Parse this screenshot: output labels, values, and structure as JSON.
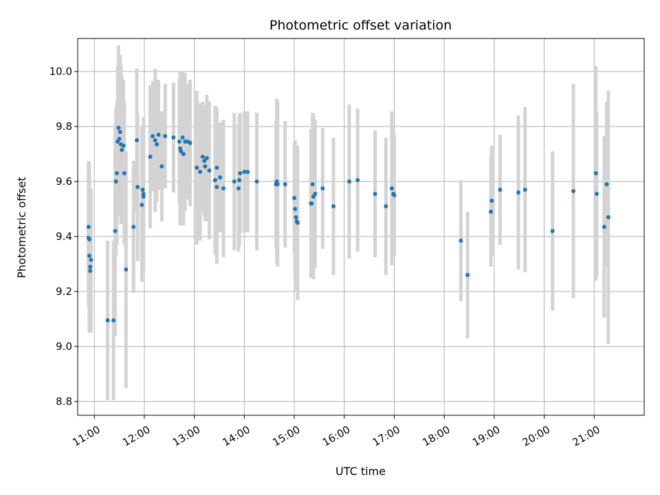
{
  "chart_data": {
    "type": "scatter",
    "title": "Photometric offset variation",
    "xlabel": "UTC time",
    "ylabel": "Photometric offset",
    "xlim": [
      "10:40",
      "22:00"
    ],
    "ylim": [
      8.75,
      10.12
    ],
    "x_ticks": [
      "11:00",
      "12:00",
      "13:00",
      "14:00",
      "15:00",
      "16:00",
      "17:00",
      "18:00",
      "19:00",
      "20:00",
      "21:00"
    ],
    "y_ticks": [
      "8.8",
      "9.0",
      "9.2",
      "9.4",
      "9.6",
      "9.8",
      "10.0"
    ],
    "grid": true,
    "colors": {
      "point": "#1f77b4",
      "errorbar": "#d3d3d3",
      "grid": "#b0b0b0"
    },
    "series": [
      {
        "x": [
          "10:53",
          "10:53",
          "10:54",
          "10:54",
          "10:55",
          "10:55",
          "10:56",
          "11:16",
          "11:23",
          "11:25",
          "11:26",
          "11:27",
          "11:28",
          "11:29",
          "11:30",
          "11:31",
          "11:32",
          "11:33",
          "11:35",
          "11:36",
          "11:38",
          "11:47",
          "11:51",
          "11:52",
          "11:57",
          "11:58",
          "11:59",
          "11:59",
          "12:07",
          "12:10",
          "12:13",
          "12:15",
          "12:17",
          "12:21",
          "12:25",
          "12:35",
          "12:42",
          "12:43",
          "12:44",
          "12:46",
          "12:47",
          "12:49",
          "12:52",
          "12:55",
          "13:03",
          "13:07",
          "13:10",
          "13:12",
          "13:13",
          "13:15",
          "13:18",
          "13:25",
          "13:27",
          "13:27",
          "13:31",
          "13:35",
          "13:48",
          "13:53",
          "13:54",
          "13:55",
          "14:00",
          "14:04",
          "14:15",
          "14:38",
          "14:39",
          "14:40",
          "14:49",
          "15:00",
          "15:01",
          "15:02",
          "15:03",
          "15:04",
          "15:20",
          "15:21",
          "15:22",
          "15:23",
          "15:25",
          "15:34",
          "15:47",
          "16:06",
          "16:16",
          "16:37",
          "16:50",
          "16:57",
          "16:59",
          "17:00",
          "18:20",
          "18:28",
          "18:56",
          "18:57",
          "19:07",
          "19:29",
          "19:37",
          "20:10",
          "20:35",
          "21:02",
          "21:03",
          "21:12",
          "21:15",
          "21:17"
        ],
        "y": [
          9.435,
          9.395,
          9.39,
          9.33,
          9.29,
          9.275,
          9.315,
          9.095,
          9.095,
          9.42,
          9.6,
          9.63,
          9.745,
          9.795,
          9.755,
          9.78,
          9.735,
          9.715,
          9.73,
          9.63,
          9.28,
          9.435,
          9.75,
          9.58,
          9.515,
          9.57,
          9.555,
          9.545,
          9.69,
          9.765,
          9.75,
          9.735,
          9.77,
          9.655,
          9.765,
          9.76,
          9.745,
          9.72,
          9.71,
          9.76,
          9.7,
          9.745,
          9.745,
          9.74,
          9.65,
          9.635,
          9.69,
          9.675,
          9.655,
          9.685,
          9.64,
          9.605,
          9.58,
          9.65,
          9.615,
          9.575,
          9.6,
          9.575,
          9.605,
          9.63,
          9.635,
          9.635,
          9.6,
          9.59,
          9.6,
          9.59,
          9.59,
          9.54,
          9.5,
          9.47,
          9.455,
          9.45,
          9.52,
          9.52,
          9.59,
          9.545,
          9.555,
          9.575,
          9.51,
          9.6,
          9.605,
          9.555,
          9.51,
          9.575,
          9.555,
          9.55,
          9.385,
          9.26,
          9.49,
          9.53,
          9.57,
          9.56,
          9.57,
          9.42,
          9.565,
          9.63,
          9.555,
          9.435,
          9.59,
          9.47
        ],
        "yerr": [
          0.24,
          0.25,
          0.28,
          0.28,
          0.24,
          0.22,
          0.26,
          0.29,
          0.29,
          0.38,
          0.27,
          0.26,
          0.27,
          0.3,
          0.28,
          0.28,
          0.29,
          0.27,
          0.24,
          0.26,
          0.43,
          0.24,
          0.26,
          0.27,
          0.28,
          0.23,
          0.28,
          0.26,
          0.26,
          0.2,
          0.26,
          0.21,
          0.2,
          0.2,
          0.19,
          0.2,
          0.23,
          0.28,
          0.26,
          0.24,
          0.26,
          0.25,
          0.21,
          0.23,
          0.28,
          0.25,
          0.2,
          0.2,
          0.2,
          0.23,
          0.25,
          0.27,
          0.28,
          0.22,
          0.2,
          0.25,
          0.25,
          0.23,
          0.24,
          0.22,
          0.22,
          0.22,
          0.25,
          0.23,
          0.3,
          0.3,
          0.23,
          0.2,
          0.25,
          0.24,
          0.25,
          0.28,
          0.27,
          0.27,
          0.26,
          0.3,
          0.27,
          0.22,
          0.25,
          0.28,
          0.26,
          0.23,
          0.25,
          0.28,
          0.23,
          0.22,
          0.22,
          0.23,
          0.2,
          0.2,
          0.2,
          0.28,
          0.3,
          0.29,
          0.39,
          0.39,
          0.3,
          0.33,
          0.3,
          0.46
        ]
      }
    ]
  }
}
